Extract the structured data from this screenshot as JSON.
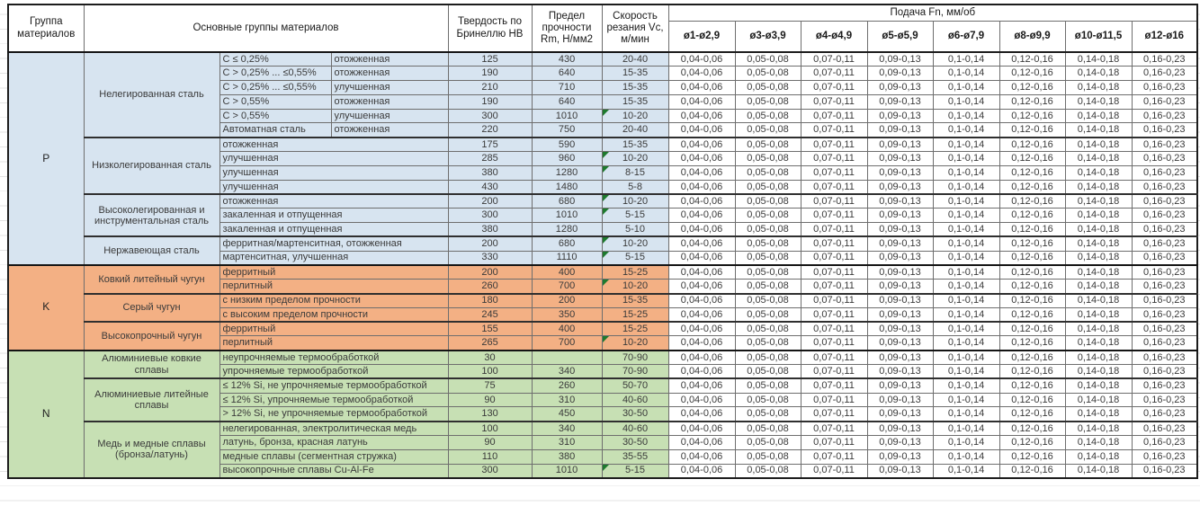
{
  "header": {
    "col_group": "Группа материалов",
    "col_main": "Основные группы материалов",
    "col_hb": "Твердость по Бринеллю HB",
    "col_rm": "Предел прочности Rm, Н/мм2",
    "col_vc": "Скорость резания Vc, м/мин",
    "feed_title": "Подача Fn, мм/об",
    "feed_cols": [
      "ø1-ø2,9",
      "ø3-ø3,9",
      "ø4-ø4,9",
      "ø5-ø5,9",
      "ø6-ø7,9",
      "ø8-ø9,9",
      "ø10-ø11,5",
      "ø12-ø16"
    ]
  },
  "feed_values": [
    "0,04-0,06",
    "0,05-0,08",
    "0,07-0,11",
    "0,09-0,13",
    "0,1-0,14",
    "0,12-0,16",
    "0,14-0,18",
    "0,16-0,23"
  ],
  "colors": {
    "P": "#d7e4f0",
    "K": "#f3b084",
    "N": "#c7e0b4",
    "note_triangle": "#1e7a2e",
    "border_heavy": "#1c1c1c"
  },
  "groups": [
    {
      "code": "P",
      "sections": [
        {
          "name": "Нелегированная сталь",
          "rows": [
            {
              "d1": "C ≤ 0,25%",
              "d2": "отожженная",
              "hb": "125",
              "rm": "430",
              "vc": "20-40",
              "note": false
            },
            {
              "d1": "C > 0,25% ... ≤0,55%",
              "d2": "отожженная",
              "hb": "190",
              "rm": "640",
              "vc": "15-35",
              "note": false
            },
            {
              "d1": "C > 0,25% ... ≤0,55%",
              "d2": "улучшенная",
              "hb": "210",
              "rm": "710",
              "vc": "15-35",
              "note": false
            },
            {
              "d1": "C > 0,55%",
              "d2": "отожженная",
              "hb": "190",
              "rm": "640",
              "vc": "15-35",
              "note": false
            },
            {
              "d1": "C > 0,55%",
              "d2": "улучшенная",
              "hb": "300",
              "rm": "1010",
              "vc": "10-20",
              "note": true
            },
            {
              "d1": "Автоматная сталь",
              "d2": "отожженная",
              "hb": "220",
              "rm": "750",
              "vc": "20-40",
              "note": false
            }
          ]
        },
        {
          "name": "Низколегированная сталь",
          "rows": [
            {
              "d1": "отожженная",
              "d2": null,
              "hb": "175",
              "rm": "590",
              "vc": "15-35",
              "note": false
            },
            {
              "d1": "улучшенная",
              "d2": null,
              "hb": "285",
              "rm": "960",
              "vc": "10-20",
              "note": true
            },
            {
              "d1": "улучшенная",
              "d2": null,
              "hb": "380",
              "rm": "1280",
              "vc": "8-15",
              "note": true
            },
            {
              "d1": "улучшенная",
              "d2": null,
              "hb": "430",
              "rm": "1480",
              "vc": "5-8",
              "note": false
            }
          ]
        },
        {
          "name": "Высоколегированная и инструментальная сталь",
          "rows": [
            {
              "d1": "отожженная",
              "d2": null,
              "hb": "200",
              "rm": "680",
              "vc": "10-20",
              "note": true
            },
            {
              "d1": "закаленная и отпущенная",
              "d2": null,
              "hb": "300",
              "rm": "1010",
              "vc": "5-15",
              "note": true
            },
            {
              "d1": "закаленная и отпущенная",
              "d2": null,
              "hb": "380",
              "rm": "1280",
              "vc": "5-10",
              "note": false
            }
          ]
        },
        {
          "name": "Нержавеющая сталь",
          "rows": [
            {
              "d1": "ферритная/мартенситная, отожженная",
              "d2": null,
              "hb": "200",
              "rm": "680",
              "vc": "10-20",
              "note": true
            },
            {
              "d1": "мартенситная, улучшенная",
              "d2": null,
              "hb": "330",
              "rm": "1110",
              "vc": "5-15",
              "note": true
            }
          ]
        }
      ]
    },
    {
      "code": "K",
      "sections": [
        {
          "name": "Ковкий литейный чугун",
          "rows": [
            {
              "d1": "ферритный",
              "d2": null,
              "hb": "200",
              "rm": "400",
              "vc": "15-25",
              "note": false
            },
            {
              "d1": "перлитный",
              "d2": null,
              "hb": "260",
              "rm": "700",
              "vc": "10-20",
              "note": true
            }
          ]
        },
        {
          "name": "Серый чугун",
          "rows": [
            {
              "d1": "с низким пределом прочности",
              "d2": null,
              "hb": "180",
              "rm": "200",
              "vc": "15-35",
              "note": false
            },
            {
              "d1": "с высоким пределом прочности",
              "d2": null,
              "hb": "245",
              "rm": "350",
              "vc": "15-25",
              "note": false
            }
          ]
        },
        {
          "name": "Высокопрочный чугун",
          "rows": [
            {
              "d1": "ферритный",
              "d2": null,
              "hb": "155",
              "rm": "400",
              "vc": "15-25",
              "note": false
            },
            {
              "d1": "перлитный",
              "d2": null,
              "hb": "265",
              "rm": "700",
              "vc": "10-20",
              "note": true
            }
          ]
        }
      ]
    },
    {
      "code": "N",
      "sections": [
        {
          "name": "Алюминиевые ковкие сплавы",
          "rows": [
            {
              "d1": "неупрочняемые термообработкой",
              "d2": null,
              "hb": "30",
              "rm": "",
              "vc": "70-90",
              "note": false
            },
            {
              "d1": "упрочняемые термообработкой",
              "d2": null,
              "hb": "100",
              "rm": "340",
              "vc": "70-90",
              "note": false
            }
          ]
        },
        {
          "name": "Алюминиевые литейные сплавы",
          "rows": [
            {
              "d1": "≤ 12% Si, не упрочняемые термообработкой",
              "d2": null,
              "hb": "75",
              "rm": "260",
              "vc": "50-70",
              "note": false
            },
            {
              "d1": "≤ 12% Si, упрочняемые термообработкой",
              "d2": null,
              "hb": "90",
              "rm": "310",
              "vc": "40-60",
              "note": false
            },
            {
              "d1": "> 12% Si, не упрочняемые термообработкой",
              "d2": null,
              "hb": "130",
              "rm": "450",
              "vc": "30-50",
              "note": false
            }
          ]
        },
        {
          "name": "Медь и медные сплавы (бронза/латунь)",
          "rows": [
            {
              "d1": "нелегированная, электролитическая медь",
              "d2": null,
              "hb": "100",
              "rm": "340",
              "vc": "40-60",
              "note": false
            },
            {
              "d1": "латунь, бронза, красная латунь",
              "d2": null,
              "hb": "90",
              "rm": "310",
              "vc": "30-50",
              "note": false
            },
            {
              "d1": "медные сплавы (сегментная стружка)",
              "d2": null,
              "hb": "110",
              "rm": "380",
              "vc": "35-55",
              "note": false
            },
            {
              "d1": "высокопрочные сплавы Cu-Al-Fe",
              "d2": null,
              "hb": "300",
              "rm": "1010",
              "vc": "5-15",
              "note": true
            }
          ]
        }
      ]
    }
  ]
}
